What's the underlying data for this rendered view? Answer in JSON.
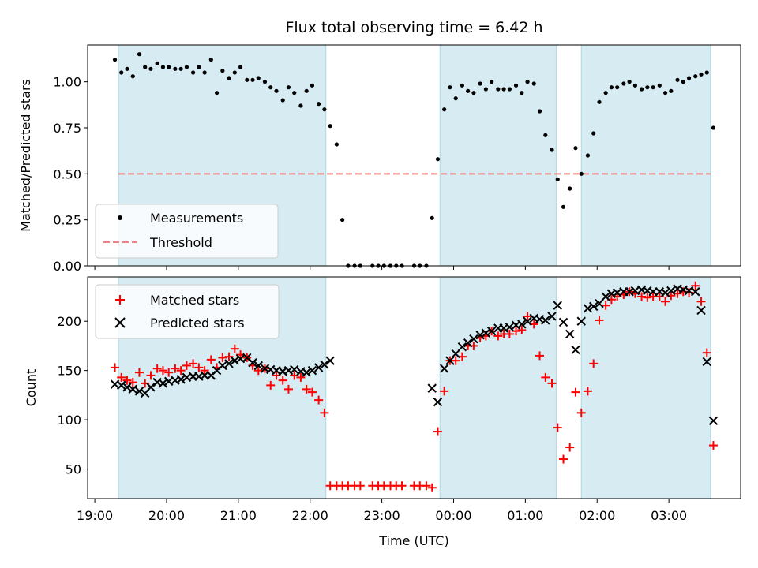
{
  "chart_data": [
    {
      "type": "scatter",
      "title": "Flux total observing time = 6.42 h",
      "xlabel": "",
      "ylabel": "Matched/Predicted stars",
      "ylim": [
        0.0,
        1.2
      ],
      "yticks": [
        "0.00",
        "0.25",
        "0.50",
        "0.75",
        "1.00"
      ],
      "shaded_intervals_hours": [
        [
          19.33,
          22.22
        ],
        [
          23.81,
          25.43
        ],
        [
          25.78,
          27.58
        ]
      ],
      "shade_color": "#add8e6",
      "legend": {
        "placement": "lower-left",
        "entries": [
          "Measurements",
          "Threshold"
        ]
      },
      "threshold": {
        "name": "Threshold",
        "value": 0.5,
        "x_range_hours": [
          19.33,
          27.58
        ],
        "color": "#f08080"
      },
      "series": [
        {
          "name": "Measurements",
          "color": "#000000",
          "x_hours": [
            19.28,
            19.37,
            19.45,
            19.53,
            19.62,
            19.7,
            19.78,
            19.87,
            19.95,
            20.03,
            20.12,
            20.2,
            20.28,
            20.37,
            20.45,
            20.53,
            20.62,
            20.7,
            20.78,
            20.87,
            20.95,
            21.03,
            21.12,
            21.2,
            21.28,
            21.37,
            21.45,
            21.53,
            21.62,
            21.7,
            21.78,
            21.87,
            21.95,
            22.03,
            22.12,
            22.2,
            22.28,
            22.37,
            22.45,
            22.53,
            22.62,
            22.7,
            22.87,
            22.95,
            23.03,
            23.12,
            23.2,
            23.28,
            23.45,
            23.53,
            23.62,
            23.7,
            23.78,
            23.87,
            23.95,
            24.03,
            24.12,
            24.2,
            24.28,
            24.37,
            24.45,
            24.53,
            24.62,
            24.7,
            24.78,
            24.87,
            24.95,
            25.03,
            25.12,
            25.2,
            25.28,
            25.37,
            25.45,
            25.53,
            25.62,
            25.7,
            25.78,
            25.87,
            25.95,
            26.03,
            26.12,
            26.2,
            26.28,
            26.37,
            26.45,
            26.53,
            26.62,
            26.7,
            26.78,
            26.87,
            26.95,
            27.03,
            27.12,
            27.2,
            27.28,
            27.37,
            27.45,
            27.53,
            27.62
          ],
          "y": [
            1.12,
            1.05,
            1.07,
            1.03,
            1.15,
            1.08,
            1.07,
            1.1,
            1.08,
            1.08,
            1.07,
            1.07,
            1.08,
            1.05,
            1.08,
            1.05,
            1.12,
            0.94,
            1.06,
            1.02,
            1.05,
            1.08,
            1.01,
            1.01,
            1.02,
            1.0,
            0.97,
            0.95,
            0.9,
            0.97,
            0.94,
            0.87,
            0.95,
            0.98,
            0.88,
            0.85,
            0.76,
            0.66,
            0.25,
            0.0,
            0.0,
            0.0,
            0.0,
            0.0,
            0.0,
            0.0,
            0.0,
            0.0,
            0.0,
            0.0,
            0.0,
            0.26,
            0.58,
            0.85,
            0.97,
            0.91,
            0.98,
            0.95,
            0.94,
            0.99,
            0.96,
            1.0,
            0.96,
            0.96,
            0.96,
            0.98,
            0.94,
            1.0,
            0.99,
            0.84,
            0.71,
            0.63,
            0.47,
            0.32,
            0.42,
            0.64,
            0.5,
            0.6,
            0.72,
            0.89,
            0.94,
            0.97,
            0.97,
            0.99,
            1.0,
            0.98,
            0.96,
            0.97,
            0.97,
            0.98,
            0.94,
            0.95,
            1.01,
            1.0,
            1.02,
            1.03,
            1.04,
            1.05,
            0.75
          ]
        }
      ]
    },
    {
      "type": "scatter",
      "title": "",
      "xlabel": "Time (UTC)",
      "ylabel": "Count",
      "xlim_hours": [
        18.9,
        28.0
      ],
      "ylim": [
        20,
        245
      ],
      "xticks": [
        {
          "hour": 19,
          "label": "19:00"
        },
        {
          "hour": 20,
          "label": "20:00"
        },
        {
          "hour": 21,
          "label": "21:00"
        },
        {
          "hour": 22,
          "label": "22:00"
        },
        {
          "hour": 23,
          "label": "23:00"
        },
        {
          "hour": 24,
          "label": "00:00"
        },
        {
          "hour": 25,
          "label": "01:00"
        },
        {
          "hour": 26,
          "label": "02:00"
        },
        {
          "hour": 27,
          "label": "03:00"
        }
      ],
      "yticks": [
        "50",
        "100",
        "150",
        "200"
      ],
      "legend": {
        "placement": "upper-left",
        "entries": [
          "Matched stars",
          "Predicted stars"
        ]
      },
      "series": [
        {
          "name": "Matched stars",
          "color": "#ff0000",
          "x_hours": [
            19.28,
            19.37,
            19.45,
            19.53,
            19.62,
            19.7,
            19.78,
            19.87,
            19.95,
            20.03,
            20.12,
            20.2,
            20.28,
            20.37,
            20.45,
            20.53,
            20.62,
            20.7,
            20.78,
            20.87,
            20.95,
            21.03,
            21.12,
            21.2,
            21.28,
            21.37,
            21.45,
            21.53,
            21.62,
            21.7,
            21.78,
            21.87,
            21.95,
            22.03,
            22.12,
            22.2,
            22.28,
            22.37,
            22.45,
            22.53,
            22.62,
            22.7,
            22.87,
            22.95,
            23.03,
            23.12,
            23.2,
            23.28,
            23.45,
            23.53,
            23.62,
            23.7,
            23.78,
            23.87,
            23.95,
            24.03,
            24.12,
            24.2,
            24.28,
            24.37,
            24.45,
            24.53,
            24.62,
            24.7,
            24.78,
            24.87,
            24.95,
            25.03,
            25.12,
            25.2,
            25.28,
            25.37,
            25.45,
            25.53,
            25.62,
            25.7,
            25.78,
            25.87,
            25.95,
            26.03,
            26.12,
            26.2,
            26.28,
            26.37,
            26.45,
            26.53,
            26.62,
            26.7,
            26.78,
            26.87,
            26.95,
            27.03,
            27.12,
            27.2,
            27.28,
            27.37,
            27.45,
            27.53,
            27.62
          ],
          "y": [
            153,
            143,
            140,
            138,
            148,
            137,
            145,
            152,
            150,
            148,
            152,
            150,
            155,
            157,
            153,
            150,
            161,
            153,
            163,
            164,
            172,
            166,
            163,
            155,
            150,
            152,
            135,
            145,
            140,
            131,
            145,
            143,
            131,
            128,
            120,
            107,
            33,
            33,
            33,
            33,
            33,
            33,
            33,
            33,
            33,
            33,
            33,
            33,
            33,
            33,
            33,
            31,
            88,
            129,
            160,
            160,
            164,
            175,
            175,
            183,
            185,
            190,
            185,
            187,
            187,
            190,
            191,
            205,
            197,
            165,
            143,
            137,
            92,
            60,
            72,
            128,
            107,
            129,
            157,
            201,
            216,
            222,
            225,
            227,
            230,
            228,
            225,
            224,
            225,
            225,
            220,
            226,
            228,
            230,
            229,
            236,
            220,
            168,
            74
          ]
        },
        {
          "name": "Predicted stars",
          "color": "#000000",
          "x_hours": [
            19.28,
            19.37,
            19.45,
            19.53,
            19.62,
            19.7,
            19.78,
            19.87,
            19.95,
            20.03,
            20.12,
            20.2,
            20.28,
            20.37,
            20.45,
            20.53,
            20.62,
            20.7,
            20.78,
            20.87,
            20.95,
            21.03,
            21.12,
            21.2,
            21.28,
            21.37,
            21.45,
            21.53,
            21.62,
            21.7,
            21.78,
            21.87,
            21.95,
            22.03,
            22.12,
            22.2,
            22.28,
            23.7,
            23.78,
            23.87,
            23.95,
            24.03,
            24.12,
            24.2,
            24.28,
            24.37,
            24.45,
            24.53,
            24.62,
            24.7,
            24.78,
            24.87,
            24.95,
            25.03,
            25.12,
            25.2,
            25.28,
            25.37,
            25.45,
            25.53,
            25.62,
            25.7,
            25.78,
            25.87,
            25.95,
            26.03,
            26.12,
            26.2,
            26.28,
            26.37,
            26.45,
            26.53,
            26.62,
            26.7,
            26.78,
            26.87,
            26.95,
            27.03,
            27.12,
            27.2,
            27.28,
            27.37,
            27.45,
            27.53,
            27.62
          ],
          "y": [
            136,
            135,
            133,
            131,
            129,
            127,
            133,
            138,
            137,
            139,
            140,
            141,
            143,
            144,
            144,
            145,
            145,
            150,
            155,
            157,
            160,
            162,
            163,
            158,
            155,
            152,
            151,
            150,
            149,
            150,
            151,
            149,
            148,
            150,
            153,
            156,
            160,
            132,
            118,
            152,
            160,
            167,
            174,
            178,
            182,
            186,
            188,
            190,
            193,
            193,
            194,
            196,
            197,
            200,
            203,
            202,
            201,
            205,
            216,
            199,
            187,
            171,
            200,
            213,
            215,
            218,
            225,
            228,
            229,
            230,
            230,
            231,
            232,
            231,
            230,
            230,
            229,
            231,
            233,
            232,
            231,
            230,
            211,
            159,
            99
          ]
        }
      ]
    }
  ]
}
